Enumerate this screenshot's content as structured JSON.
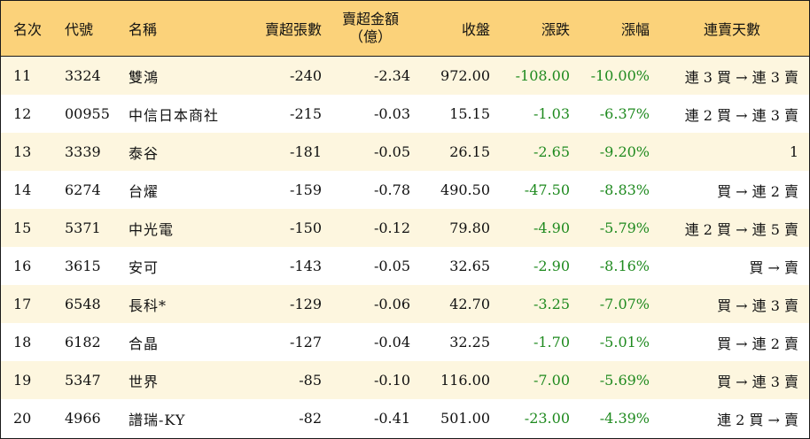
{
  "headers": {
    "rank": "名次",
    "code": "代號",
    "name": "名稱",
    "net_sell_volume": "賣超張數",
    "net_sell_amount_line1": "賣超金額",
    "net_sell_amount_line2": "（億）",
    "close": "收盤",
    "change": "漲跌",
    "change_pct": "漲幅",
    "streak": "連賣天數"
  },
  "colors": {
    "header_bg": "#fbd27a",
    "odd_row_bg": "#fdf6df",
    "even_row_bg": "#ffffff",
    "negative_change": "#1f8a1f"
  },
  "rows": [
    {
      "rank": "11",
      "code": "3324",
      "name": "雙鴻",
      "volume": "-240",
      "amount": "-2.34",
      "close": "972.00",
      "change": "-108.00",
      "pct": "-10.00%",
      "streak": "連 3 買 → 連 3 賣"
    },
    {
      "rank": "12",
      "code": "00955",
      "name": "中信日本商社",
      "volume": "-215",
      "amount": "-0.03",
      "close": "15.15",
      "change": "-1.03",
      "pct": "-6.37%",
      "streak": "連 2 買 → 連 3 賣"
    },
    {
      "rank": "13",
      "code": "3339",
      "name": "泰谷",
      "volume": "-181",
      "amount": "-0.05",
      "close": "26.15",
      "change": "-2.65",
      "pct": "-9.20%",
      "streak": "1"
    },
    {
      "rank": "14",
      "code": "6274",
      "name": "台燿",
      "volume": "-159",
      "amount": "-0.78",
      "close": "490.50",
      "change": "-47.50",
      "pct": "-8.83%",
      "streak": "買 → 連 2 賣"
    },
    {
      "rank": "15",
      "code": "5371",
      "name": "中光電",
      "volume": "-150",
      "amount": "-0.12",
      "close": "79.80",
      "change": "-4.90",
      "pct": "-5.79%",
      "streak": "連 2 買 → 連 5 賣"
    },
    {
      "rank": "16",
      "code": "3615",
      "name": "安可",
      "volume": "-143",
      "amount": "-0.05",
      "close": "32.65",
      "change": "-2.90",
      "pct": "-8.16%",
      "streak": "買 → 賣"
    },
    {
      "rank": "17",
      "code": "6548",
      "name": "長科*",
      "volume": "-129",
      "amount": "-0.06",
      "close": "42.70",
      "change": "-3.25",
      "pct": "-7.07%",
      "streak": "買 → 連 3 賣"
    },
    {
      "rank": "18",
      "code": "6182",
      "name": "合晶",
      "volume": "-127",
      "amount": "-0.04",
      "close": "32.25",
      "change": "-1.70",
      "pct": "-5.01%",
      "streak": "買 → 連 2 賣"
    },
    {
      "rank": "19",
      "code": "5347",
      "name": "世界",
      "volume": "-85",
      "amount": "-0.10",
      "close": "116.00",
      "change": "-7.00",
      "pct": "-5.69%",
      "streak": "買 → 連 3 賣"
    },
    {
      "rank": "20",
      "code": "4966",
      "name": "譜瑞-KY",
      "volume": "-82",
      "amount": "-0.41",
      "close": "501.00",
      "change": "-23.00",
      "pct": "-4.39%",
      "streak": "連 2 買 → 賣"
    }
  ]
}
